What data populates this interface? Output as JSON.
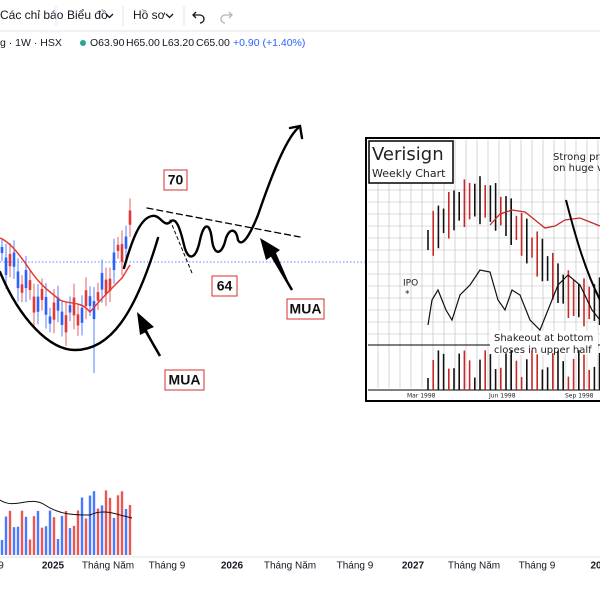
{
  "toolbar": {
    "indicators": "Các chỉ báo",
    "chart": "Biểu đồ",
    "profile": "Hồ sơ"
  },
  "header": {
    "symbol": "g · 1W · HSX",
    "open": "O63.90",
    "high": "H65.00",
    "low": "L63.20",
    "close": "C65.00",
    "change": "+0.90 (+1.40%)"
  },
  "annotations": {
    "level_high": "70",
    "level_low": "64",
    "buy_1": "MUA",
    "buy_2": "MUA"
  },
  "inset": {
    "title": "Verisign",
    "subtitle": "Weekly Chart",
    "note_top_1": "Strong pri",
    "note_top_2": "on huge v",
    "ipo": "IPO",
    "star": "*",
    "note_bottom_1": "Shakeout at bottom",
    "note_bottom_2": "closes in upper half",
    "dates": [
      "Mar 1998",
      "Jun 1998",
      "Sep 1998"
    ]
  },
  "x_axis": [
    "9",
    "2025",
    "Tháng Năm",
    "Tháng 9",
    "2026",
    "Tháng Năm",
    "Tháng 9",
    "2027",
    "Tháng Năm",
    "Tháng 9",
    "20"
  ]
}
